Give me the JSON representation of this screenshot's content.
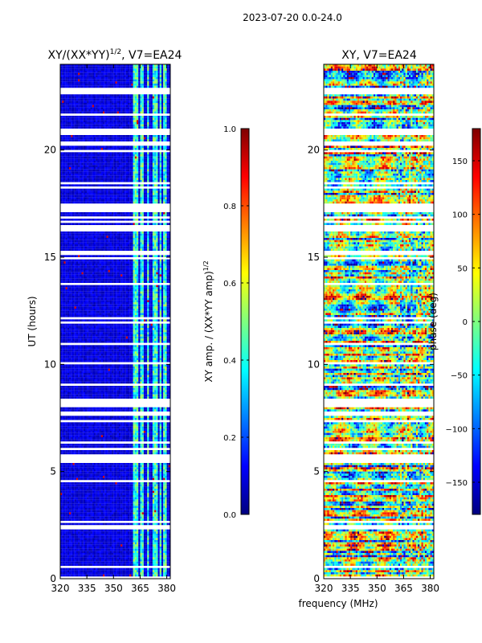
{
  "suptitle": "2023-07-20 0.0-24.0",
  "colors": {
    "jet": [
      "#00007f",
      "#0000ff",
      "#007fff",
      "#00ffff",
      "#7fff7f",
      "#ffff00",
      "#ff7f00",
      "#ff0000",
      "#7f0000"
    ],
    "background": "#ffffff",
    "gap": "#ffffff"
  },
  "chart_data": [
    {
      "type": "heatmap",
      "title_text": "XY/(XX*YY)",
      "title_sup": "1/2",
      "title_suffix": ", V7=EA24",
      "xlabel": "",
      "ylabel": "UT (hours)",
      "xlim": [
        320,
        382
      ],
      "ylim": [
        0,
        24
      ],
      "xticks": [
        320,
        335,
        350,
        365,
        380
      ],
      "yticks": [
        0,
        5,
        10,
        15,
        20
      ],
      "value_range": [
        0,
        1
      ],
      "background_value": 0.05,
      "active_channel_bands_mhz": [
        [
          361,
          364
        ],
        [
          365,
          367
        ],
        [
          369,
          370
        ],
        [
          372,
          375
        ],
        [
          376,
          377
        ],
        [
          378,
          380
        ]
      ],
      "data_gaps_ut_hours": [
        [
          22.6,
          22.85
        ],
        [
          20.7,
          21.0
        ],
        [
          20.2,
          20.4
        ],
        [
          17.1,
          17.5
        ],
        [
          16.3,
          16.5
        ],
        [
          15.1,
          15.25
        ],
        [
          8.0,
          8.35
        ],
        [
          7.6,
          7.75
        ]
      ],
      "colorbar": {
        "label_text": "XY amp. / (XX*YY amp)",
        "label_sup": "1/2",
        "range": [
          0,
          1
        ],
        "ticks": [
          "0.0",
          "0.2",
          "0.4",
          "0.6",
          "0.8",
          "1.0"
        ]
      }
    },
    {
      "type": "heatmap",
      "title_text": "XY, V7=EA24",
      "xlabel": "frequency (MHz)",
      "ylabel": "",
      "xlim": [
        320,
        382
      ],
      "ylim": [
        0,
        24
      ],
      "xticks": [
        320,
        335,
        350,
        365,
        380
      ],
      "yticks": [
        0,
        5,
        10,
        15,
        20
      ],
      "value_range": [
        -180,
        180
      ],
      "data_gaps_ut_hours": [
        [
          22.6,
          22.85
        ],
        [
          20.7,
          21.0
        ],
        [
          20.2,
          20.4
        ],
        [
          17.1,
          17.5
        ],
        [
          16.3,
          16.5
        ],
        [
          15.1,
          15.25
        ],
        [
          8.0,
          8.35
        ],
        [
          7.6,
          7.75
        ]
      ],
      "colorbar": {
        "label_text": "phase (deg)",
        "range": [
          -180,
          180
        ],
        "ticks": [
          "−150",
          "−100",
          "−50",
          "0",
          "50",
          "100",
          "150"
        ]
      }
    }
  ]
}
